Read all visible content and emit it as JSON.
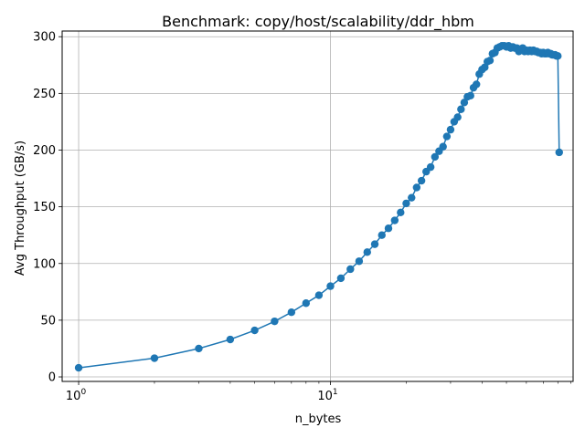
{
  "chart_data": {
    "type": "line",
    "title": "Benchmark: copy/host/scalability/ddr_hbm",
    "xlabel": "n_bytes",
    "ylabel": "Avg Throughput (GB/s)",
    "x_scale": "log",
    "xlim": [
      0.86,
      92
    ],
    "ylim": [
      -4,
      305
    ],
    "x_ticks": [
      1,
      10
    ],
    "x_tick_labels": [
      "10^0",
      "10^1"
    ],
    "y_ticks": [
      0,
      50,
      100,
      150,
      200,
      250,
      300
    ],
    "grid": true,
    "legend": "none",
    "series": [
      {
        "color": "#1f77b4",
        "marker": "circle",
        "x": [
          1,
          2,
          3,
          4,
          5,
          6,
          7,
          8,
          9,
          10,
          11,
          12,
          13,
          14,
          15,
          16,
          17,
          18,
          19,
          20,
          21,
          22,
          23,
          24,
          25,
          26,
          27,
          28,
          29,
          30,
          31,
          32,
          33,
          34,
          35,
          36,
          37,
          38,
          39,
          40,
          41,
          42,
          43,
          44,
          45,
          46,
          47,
          48,
          49,
          50,
          51,
          52,
          53,
          54,
          55,
          56,
          57,
          58,
          59,
          60,
          61,
          62,
          63,
          64,
          65,
          66,
          67,
          68,
          69,
          70,
          71,
          72,
          73,
          74,
          75,
          76,
          77,
          78,
          79,
          80,
          81
        ],
        "y": [
          8,
          16.5,
          25,
          33,
          41,
          49,
          57,
          65,
          72,
          80,
          87,
          95,
          102,
          110,
          117,
          125,
          131,
          138,
          145,
          153,
          158,
          167,
          173,
          181,
          185,
          194,
          199,
          203,
          212,
          218,
          225,
          229,
          236,
          242,
          247,
          248,
          255,
          258,
          267,
          271,
          273,
          278,
          279,
          285,
          286,
          290,
          291,
          292,
          292,
          291,
          292,
          290,
          291,
          290,
          290,
          287,
          288,
          290,
          287,
          288,
          287,
          288,
          287,
          288,
          287,
          287,
          286,
          286,
          285,
          286,
          285,
          285,
          286,
          285,
          285,
          284,
          284,
          284,
          283,
          283,
          198
        ]
      }
    ]
  }
}
